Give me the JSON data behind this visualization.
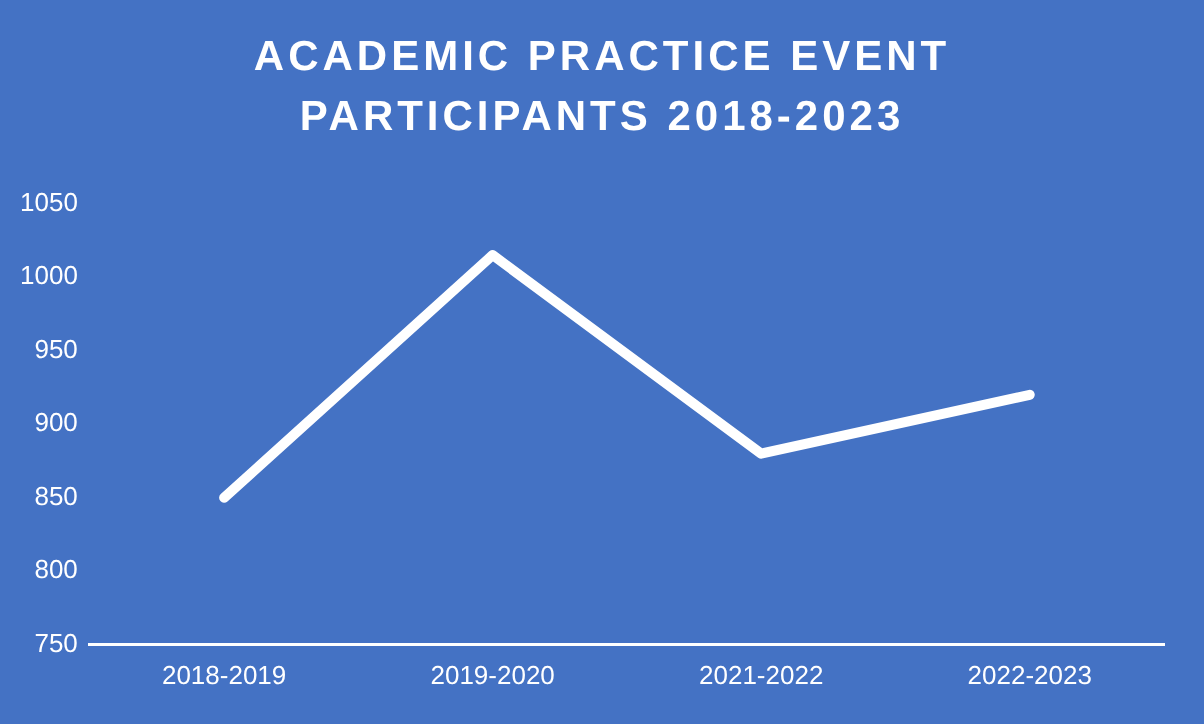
{
  "chart_data": {
    "type": "line",
    "title": "ACADEMIC PRACTICE EVENT PARTICIPANTS 2018-2023",
    "categories": [
      "2018-2019",
      "2019-2020",
      "2021-2022",
      "2022-2023"
    ],
    "series": [
      {
        "color": "#ffffff",
        "values": [
          850,
          1015,
          880,
          920
        ]
      }
    ],
    "ylim": [
      750,
      1050
    ],
    "yticks": [
      750,
      800,
      850,
      900,
      950,
      1000,
      1050
    ],
    "grid": false,
    "legend": false,
    "marker": "none",
    "line_style": "solid"
  }
}
